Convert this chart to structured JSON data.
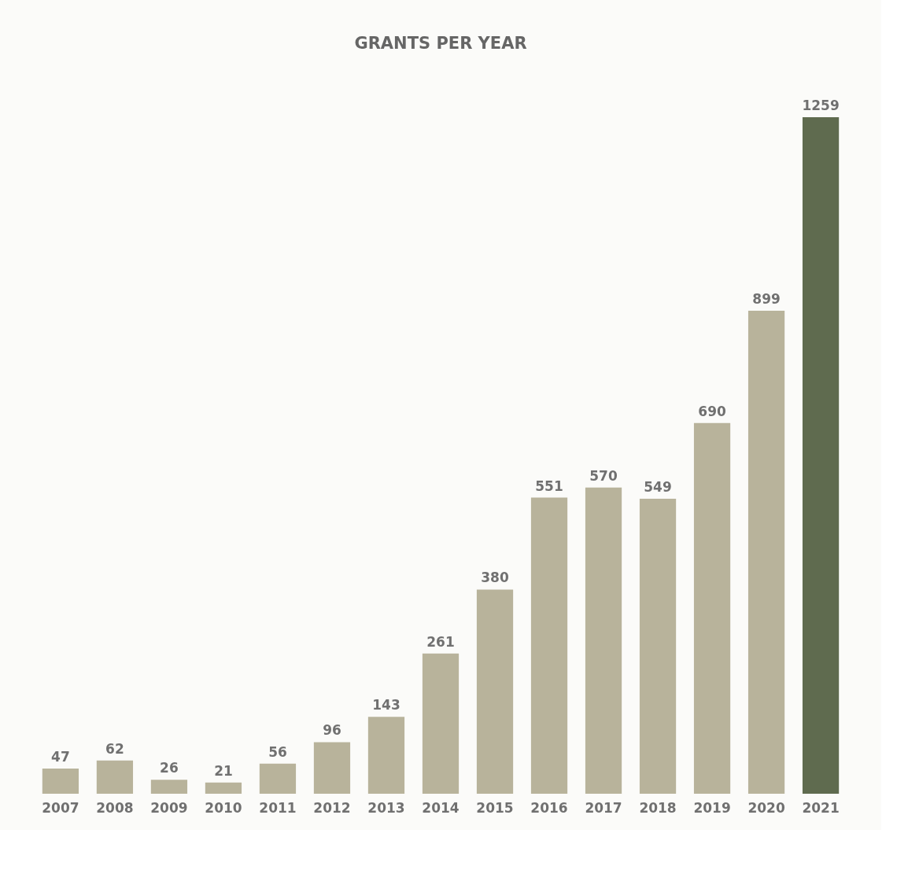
{
  "chart_data": {
    "type": "bar",
    "title": "GRANTS PER YEAR",
    "categories": [
      "2007",
      "2008",
      "2009",
      "2010",
      "2011",
      "2012",
      "2013",
      "2014",
      "2015",
      "2016",
      "2017",
      "2018",
      "2019",
      "2020",
      "2021"
    ],
    "values": [
      47,
      62,
      26,
      21,
      56,
      96,
      143,
      261,
      380,
      551,
      570,
      549,
      690,
      899,
      1259
    ],
    "colors": [
      "#b8b39b",
      "#b8b39b",
      "#b8b39b",
      "#b8b39b",
      "#b8b39b",
      "#b8b39b",
      "#b8b39b",
      "#b8b39b",
      "#b8b39b",
      "#b8b39b",
      "#b8b39b",
      "#b8b39b",
      "#b8b39b",
      "#b8b39b",
      "#5f6b4f"
    ],
    "data_labels": true
  }
}
